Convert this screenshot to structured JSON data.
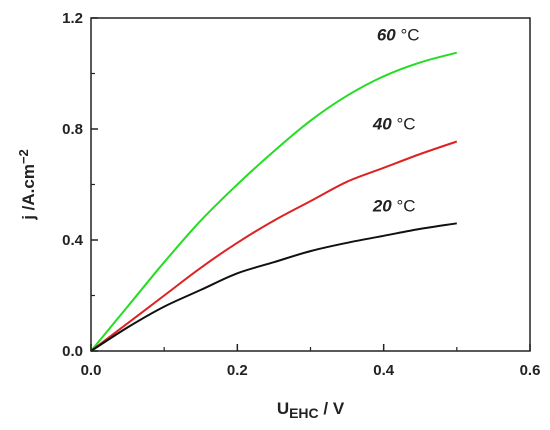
{
  "chart_data": {
    "type": "line",
    "xlabel_main": "U",
    "xlabel_sub": "EHC",
    "xlabel_unit": " / V",
    "ylabel": "j /A.cm",
    "ylabel_sup": "−2",
    "xlim": [
      0.0,
      0.6
    ],
    "ylim": [
      0.0,
      1.2
    ],
    "xticks": [
      0.0,
      0.2,
      0.4,
      0.6
    ],
    "yticks": [
      0.0,
      0.4,
      0.8,
      1.2
    ],
    "xtick_labels": [
      "0.0",
      "0.2",
      "0.4",
      "0.6"
    ],
    "ytick_labels": [
      "0.0",
      "0.4",
      "0.8",
      "1.2"
    ],
    "grid": false,
    "series": [
      {
        "num": "60",
        "unit": " °C",
        "color": "#22dd22",
        "x": [
          0.0,
          0.05,
          0.1,
          0.15,
          0.2,
          0.25,
          0.3,
          0.35,
          0.4,
          0.45,
          0.5
        ],
        "y": [
          0.0,
          0.16,
          0.32,
          0.47,
          0.6,
          0.72,
          0.83,
          0.92,
          0.99,
          1.04,
          1.075
        ]
      },
      {
        "num": "40",
        "unit": " °C",
        "color": "#dd2222",
        "x": [
          0.0,
          0.05,
          0.1,
          0.15,
          0.2,
          0.25,
          0.3,
          0.35,
          0.4,
          0.45,
          0.5
        ],
        "y": [
          0.0,
          0.1,
          0.2,
          0.3,
          0.39,
          0.47,
          0.54,
          0.61,
          0.66,
          0.71,
          0.755
        ]
      },
      {
        "num": "20",
        "unit": " °C",
        "color": "#111111",
        "x": [
          0.0,
          0.05,
          0.1,
          0.15,
          0.2,
          0.25,
          0.3,
          0.35,
          0.4,
          0.45,
          0.5
        ],
        "y": [
          0.0,
          0.085,
          0.16,
          0.22,
          0.28,
          0.32,
          0.36,
          0.39,
          0.415,
          0.44,
          0.46
        ]
      }
    ]
  }
}
